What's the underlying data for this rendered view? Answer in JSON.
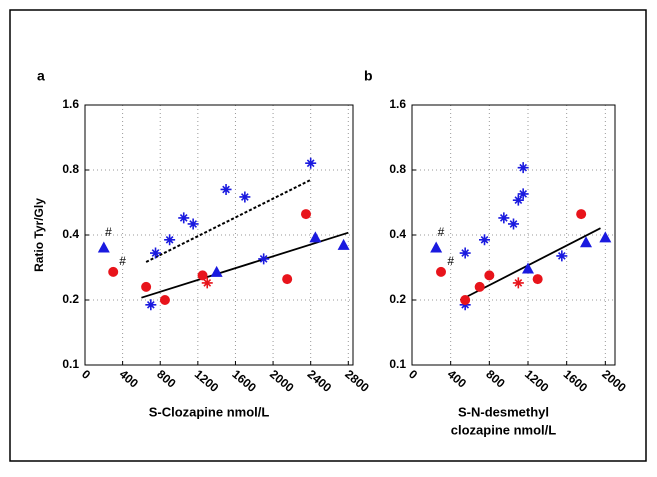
{
  "chart_data": [
    {
      "type": "scatter",
      "panel_label": "a",
      "ylabel": "Ratio Tyr/Gly",
      "xlabel": [
        "S-Clozapine nmol/L"
      ],
      "xlim": [
        0,
        2850
      ],
      "xticks": [
        0,
        400,
        800,
        1200,
        1600,
        2000,
        2400,
        2800
      ],
      "ylim": [
        0.1,
        1.6
      ],
      "yticks": [
        0.1,
        0.2,
        0.4,
        0.8,
        1.6
      ],
      "log_y": true,
      "grid": true,
      "series": [
        {
          "marker": "triangle",
          "color": "#1a1adf",
          "x": [
            200,
            1400,
            2450,
            2750
          ],
          "values": [
            0.35,
            0.27,
            0.39,
            0.36
          ]
        },
        {
          "marker": "asterisk",
          "color": "#1a1adf",
          "x": [
            700,
            750,
            900,
            1050,
            1150,
            1500,
            1700,
            1900,
            2400
          ],
          "values": [
            0.19,
            0.33,
            0.38,
            0.48,
            0.45,
            0.65,
            0.6,
            0.31,
            0.86
          ]
        },
        {
          "marker": "circle",
          "color": "#e8141b",
          "x": [
            300,
            650,
            850,
            1250,
            2150,
            2350
          ],
          "values": [
            0.27,
            0.23,
            0.2,
            0.26,
            0.25,
            0.5
          ]
        },
        {
          "marker": "asterisk",
          "color": "#e8141b",
          "x": [
            1300
          ],
          "values": [
            0.24
          ]
        }
      ],
      "lines": [
        {
          "style": "solid",
          "x": [
            600,
            2800
          ],
          "values": [
            0.205,
            0.41
          ]
        },
        {
          "style": "dashed",
          "x": [
            650,
            2400
          ],
          "values": [
            0.3,
            0.72
          ]
        }
      ],
      "annotations": [
        "#",
        "#"
      ]
    },
    {
      "type": "scatter",
      "panel_label": "b",
      "xlabel": [
        "S-N-desmethyl",
        "clozapine nmol/L"
      ],
      "xlim": [
        0,
        2100
      ],
      "xticks": [
        0,
        400,
        800,
        1200,
        1600,
        2000
      ],
      "ylim": [
        0.1,
        1.6
      ],
      "yticks": [
        0.1,
        0.2,
        0.4,
        0.8,
        1.6
      ],
      "log_y": true,
      "grid": true,
      "series": [
        {
          "marker": "triangle",
          "color": "#1a1adf",
          "x": [
            250,
            1200,
            1800,
            2000
          ],
          "values": [
            0.35,
            0.28,
            0.37,
            0.39
          ]
        },
        {
          "marker": "asterisk",
          "color": "#1a1adf",
          "x": [
            550,
            550,
            750,
            950,
            1050,
            1100,
            1150,
            1150,
            1550
          ],
          "values": [
            0.19,
            0.33,
            0.38,
            0.48,
            0.45,
            0.58,
            0.62,
            0.82,
            0.32
          ]
        },
        {
          "marker": "circle",
          "color": "#e8141b",
          "x": [
            300,
            550,
            700,
            800,
            1300,
            1750
          ],
          "values": [
            0.27,
            0.2,
            0.23,
            0.26,
            0.25,
            0.5
          ]
        },
        {
          "marker": "asterisk",
          "color": "#e8141b",
          "x": [
            1100
          ],
          "values": [
            0.24
          ]
        }
      ],
      "lines": [
        {
          "style": "solid",
          "x": [
            500,
            1950
          ],
          "values": [
            0.2,
            0.43
          ]
        }
      ],
      "annotations": [
        "#",
        "#"
      ]
    }
  ]
}
